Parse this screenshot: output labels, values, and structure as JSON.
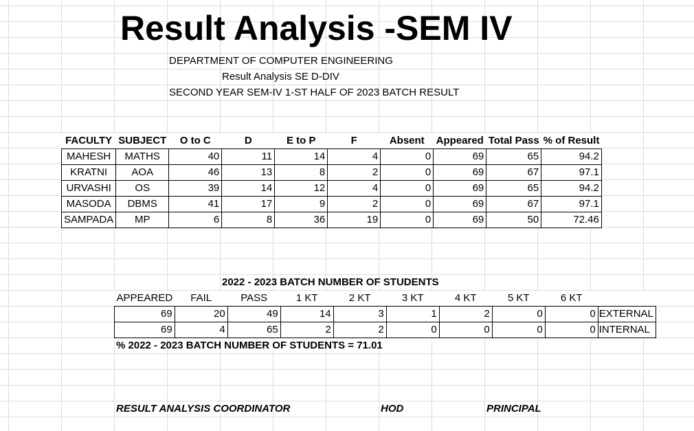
{
  "title": "Result Analysis -SEM IV",
  "header": {
    "department": "DEPARTMENT OF COMPUTER ENGINEERING",
    "analysis_div": "Result Analysis SE D-DIV",
    "batch_line": "SECOND YEAR SEM-IV 1-ST HALF OF 2023 BATCH RESULT"
  },
  "result_table": {
    "columns": [
      "FACULTY",
      "SUBJECT",
      "O to C",
      "D",
      "E to P",
      "F",
      "Absent",
      "Appeared",
      "Total Pass",
      "% of Result"
    ],
    "rows": [
      [
        "MAHESH",
        "MATHS",
        "40",
        "11",
        "14",
        "4",
        "0",
        "69",
        "65",
        "94.2"
      ],
      [
        "KRATNI",
        "AOA",
        "46",
        "13",
        "8",
        "2",
        "0",
        "69",
        "67",
        "97.1"
      ],
      [
        "URVASHI",
        "OS",
        "39",
        "14",
        "12",
        "4",
        "0",
        "69",
        "65",
        "94.2"
      ],
      [
        "MASODA",
        "DBMS",
        "41",
        "17",
        "9",
        "2",
        "0",
        "69",
        "67",
        "97.1"
      ],
      [
        "SAMPADA",
        "MP",
        "6",
        "8",
        "36",
        "19",
        "0",
        "69",
        "50",
        "72.46"
      ]
    ]
  },
  "batch": {
    "heading": "2022 - 2023 BATCH NUMBER OF STUDENTS",
    "columns": [
      "APPEARED",
      "FAIL",
      "PASS",
      "1 KT",
      "2 KT",
      "3 KT",
      "4 KT",
      "5 KT",
      "6 KT"
    ],
    "rows": [
      {
        "values": [
          "69",
          "20",
          "49",
          "14",
          "3",
          "1",
          "2",
          "0",
          "0"
        ],
        "label": "EXTERNAL"
      },
      {
        "values": [
          "69",
          "4",
          "65",
          "2",
          "2",
          "0",
          "0",
          "0",
          "0"
        ],
        "label": "INTERNAL"
      }
    ],
    "percent_line": "% 2022 - 2023 BATCH NUMBER OF STUDENTS = 71.01"
  },
  "signatures": {
    "coordinator": "RESULT ANALYSIS COORDINATOR",
    "hod": "HOD",
    "principal": "PRINCIPAL"
  }
}
